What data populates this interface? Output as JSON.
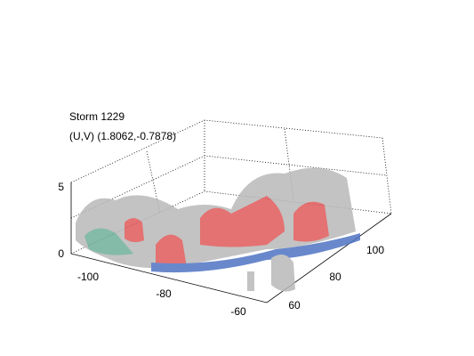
{
  "plot": {
    "title": "Storm 1229",
    "subtitle": "(U,V) (1.8062,-0.7878)",
    "z_ticks": [
      "0",
      "5"
    ],
    "x_ticks": [
      "-100",
      "-80",
      "-60"
    ],
    "y_ticks": [
      "60",
      "80",
      "100"
    ]
  }
}
